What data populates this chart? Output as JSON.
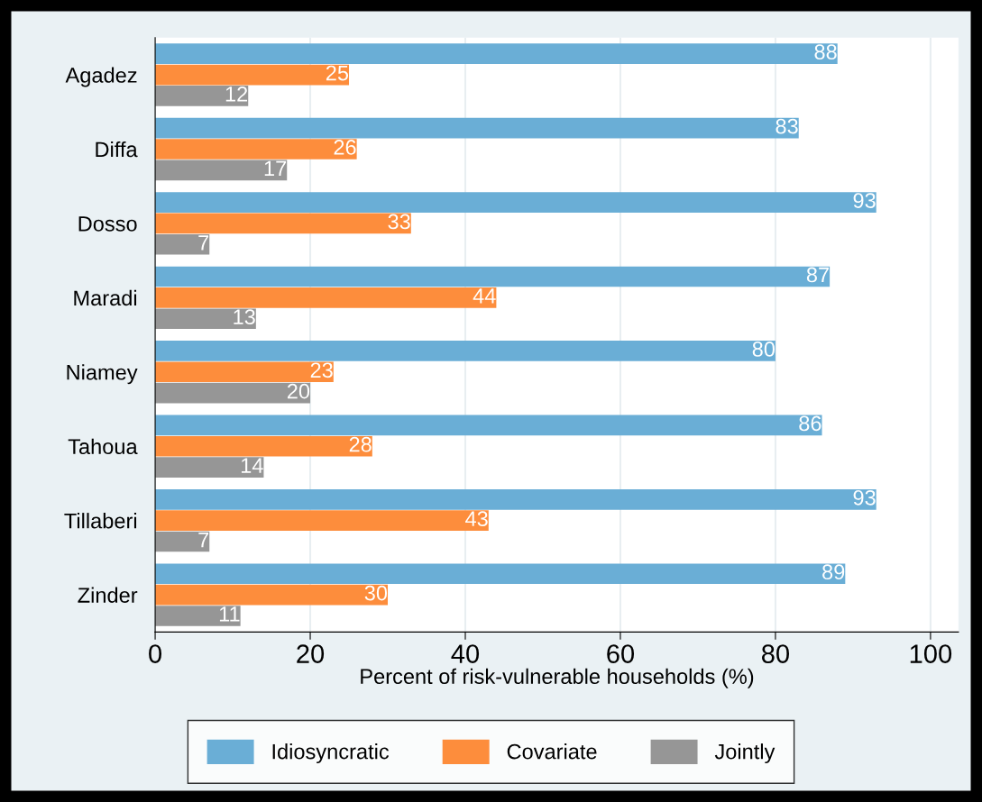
{
  "chart_data": {
    "type": "bar",
    "orientation": "horizontal",
    "categories": [
      "Agadez",
      "Diffa",
      "Dosso",
      "Maradi",
      "Niamey",
      "Tahoua",
      "Tillaberi",
      "Zinder"
    ],
    "series": [
      {
        "name": "Idiosyncratic",
        "color": "#6aaed6",
        "values": [
          88,
          83,
          93,
          87,
          80,
          86,
          93,
          89
        ]
      },
      {
        "name": "Covariate",
        "color": "#fd8d3c",
        "values": [
          25,
          26,
          33,
          44,
          23,
          28,
          43,
          30
        ]
      },
      {
        "name": "Jointly",
        "color": "#969696",
        "values": [
          12,
          17,
          7,
          13,
          20,
          14,
          7,
          11
        ]
      }
    ],
    "xlabel": "Percent of risk-vulnerable households (%)",
    "xlim": [
      0,
      103.6
    ],
    "xticks": [
      0,
      20,
      40,
      60,
      80,
      100
    ],
    "grid": "x",
    "legend": "bottom",
    "data_labels": true
  }
}
